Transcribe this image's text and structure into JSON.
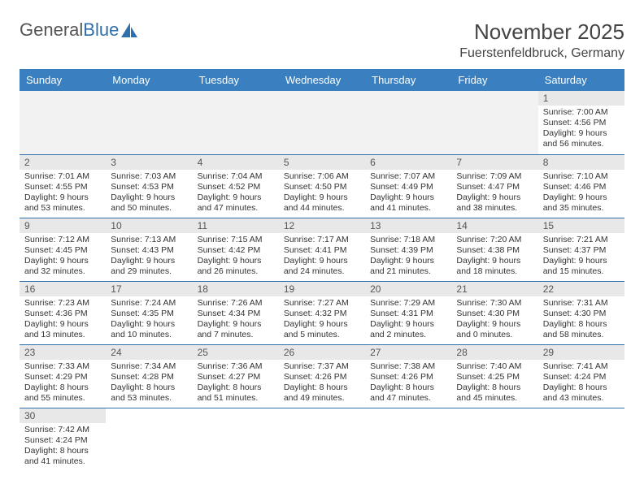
{
  "brand": {
    "part1": "General",
    "part2": "Blue"
  },
  "title": "November 2025",
  "location": "Fuerstenfeldbruck, Germany",
  "colors": {
    "header_bg": "#3a7fbf",
    "header_text": "#ffffff",
    "daynum_bg": "#e8e8e8",
    "row_border": "#2f6fab",
    "empty_bg": "#f2f2f2",
    "brand_blue": "#2f6fab"
  },
  "weekdays": [
    "Sunday",
    "Monday",
    "Tuesday",
    "Wednesday",
    "Thursday",
    "Friday",
    "Saturday"
  ],
  "weeks": [
    [
      null,
      null,
      null,
      null,
      null,
      null,
      {
        "n": "1",
        "sr": "Sunrise: 7:00 AM",
        "ss": "Sunset: 4:56 PM",
        "d1": "Daylight: 9 hours",
        "d2": "and 56 minutes."
      }
    ],
    [
      {
        "n": "2",
        "sr": "Sunrise: 7:01 AM",
        "ss": "Sunset: 4:55 PM",
        "d1": "Daylight: 9 hours",
        "d2": "and 53 minutes."
      },
      {
        "n": "3",
        "sr": "Sunrise: 7:03 AM",
        "ss": "Sunset: 4:53 PM",
        "d1": "Daylight: 9 hours",
        "d2": "and 50 minutes."
      },
      {
        "n": "4",
        "sr": "Sunrise: 7:04 AM",
        "ss": "Sunset: 4:52 PM",
        "d1": "Daylight: 9 hours",
        "d2": "and 47 minutes."
      },
      {
        "n": "5",
        "sr": "Sunrise: 7:06 AM",
        "ss": "Sunset: 4:50 PM",
        "d1": "Daylight: 9 hours",
        "d2": "and 44 minutes."
      },
      {
        "n": "6",
        "sr": "Sunrise: 7:07 AM",
        "ss": "Sunset: 4:49 PM",
        "d1": "Daylight: 9 hours",
        "d2": "and 41 minutes."
      },
      {
        "n": "7",
        "sr": "Sunrise: 7:09 AM",
        "ss": "Sunset: 4:47 PM",
        "d1": "Daylight: 9 hours",
        "d2": "and 38 minutes."
      },
      {
        "n": "8",
        "sr": "Sunrise: 7:10 AM",
        "ss": "Sunset: 4:46 PM",
        "d1": "Daylight: 9 hours",
        "d2": "and 35 minutes."
      }
    ],
    [
      {
        "n": "9",
        "sr": "Sunrise: 7:12 AM",
        "ss": "Sunset: 4:45 PM",
        "d1": "Daylight: 9 hours",
        "d2": "and 32 minutes."
      },
      {
        "n": "10",
        "sr": "Sunrise: 7:13 AM",
        "ss": "Sunset: 4:43 PM",
        "d1": "Daylight: 9 hours",
        "d2": "and 29 minutes."
      },
      {
        "n": "11",
        "sr": "Sunrise: 7:15 AM",
        "ss": "Sunset: 4:42 PM",
        "d1": "Daylight: 9 hours",
        "d2": "and 26 minutes."
      },
      {
        "n": "12",
        "sr": "Sunrise: 7:17 AM",
        "ss": "Sunset: 4:41 PM",
        "d1": "Daylight: 9 hours",
        "d2": "and 24 minutes."
      },
      {
        "n": "13",
        "sr": "Sunrise: 7:18 AM",
        "ss": "Sunset: 4:39 PM",
        "d1": "Daylight: 9 hours",
        "d2": "and 21 minutes."
      },
      {
        "n": "14",
        "sr": "Sunrise: 7:20 AM",
        "ss": "Sunset: 4:38 PM",
        "d1": "Daylight: 9 hours",
        "d2": "and 18 minutes."
      },
      {
        "n": "15",
        "sr": "Sunrise: 7:21 AM",
        "ss": "Sunset: 4:37 PM",
        "d1": "Daylight: 9 hours",
        "d2": "and 15 minutes."
      }
    ],
    [
      {
        "n": "16",
        "sr": "Sunrise: 7:23 AM",
        "ss": "Sunset: 4:36 PM",
        "d1": "Daylight: 9 hours",
        "d2": "and 13 minutes."
      },
      {
        "n": "17",
        "sr": "Sunrise: 7:24 AM",
        "ss": "Sunset: 4:35 PM",
        "d1": "Daylight: 9 hours",
        "d2": "and 10 minutes."
      },
      {
        "n": "18",
        "sr": "Sunrise: 7:26 AM",
        "ss": "Sunset: 4:34 PM",
        "d1": "Daylight: 9 hours",
        "d2": "and 7 minutes."
      },
      {
        "n": "19",
        "sr": "Sunrise: 7:27 AM",
        "ss": "Sunset: 4:32 PM",
        "d1": "Daylight: 9 hours",
        "d2": "and 5 minutes."
      },
      {
        "n": "20",
        "sr": "Sunrise: 7:29 AM",
        "ss": "Sunset: 4:31 PM",
        "d1": "Daylight: 9 hours",
        "d2": "and 2 minutes."
      },
      {
        "n": "21",
        "sr": "Sunrise: 7:30 AM",
        "ss": "Sunset: 4:30 PM",
        "d1": "Daylight: 9 hours",
        "d2": "and 0 minutes."
      },
      {
        "n": "22",
        "sr": "Sunrise: 7:31 AM",
        "ss": "Sunset: 4:30 PM",
        "d1": "Daylight: 8 hours",
        "d2": "and 58 minutes."
      }
    ],
    [
      {
        "n": "23",
        "sr": "Sunrise: 7:33 AM",
        "ss": "Sunset: 4:29 PM",
        "d1": "Daylight: 8 hours",
        "d2": "and 55 minutes."
      },
      {
        "n": "24",
        "sr": "Sunrise: 7:34 AM",
        "ss": "Sunset: 4:28 PM",
        "d1": "Daylight: 8 hours",
        "d2": "and 53 minutes."
      },
      {
        "n": "25",
        "sr": "Sunrise: 7:36 AM",
        "ss": "Sunset: 4:27 PM",
        "d1": "Daylight: 8 hours",
        "d2": "and 51 minutes."
      },
      {
        "n": "26",
        "sr": "Sunrise: 7:37 AM",
        "ss": "Sunset: 4:26 PM",
        "d1": "Daylight: 8 hours",
        "d2": "and 49 minutes."
      },
      {
        "n": "27",
        "sr": "Sunrise: 7:38 AM",
        "ss": "Sunset: 4:26 PM",
        "d1": "Daylight: 8 hours",
        "d2": "and 47 minutes."
      },
      {
        "n": "28",
        "sr": "Sunrise: 7:40 AM",
        "ss": "Sunset: 4:25 PM",
        "d1": "Daylight: 8 hours",
        "d2": "and 45 minutes."
      },
      {
        "n": "29",
        "sr": "Sunrise: 7:41 AM",
        "ss": "Sunset: 4:24 PM",
        "d1": "Daylight: 8 hours",
        "d2": "and 43 minutes."
      }
    ],
    [
      {
        "n": "30",
        "sr": "Sunrise: 7:42 AM",
        "ss": "Sunset: 4:24 PM",
        "d1": "Daylight: 8 hours",
        "d2": "and 41 minutes."
      },
      null,
      null,
      null,
      null,
      null,
      null
    ]
  ]
}
